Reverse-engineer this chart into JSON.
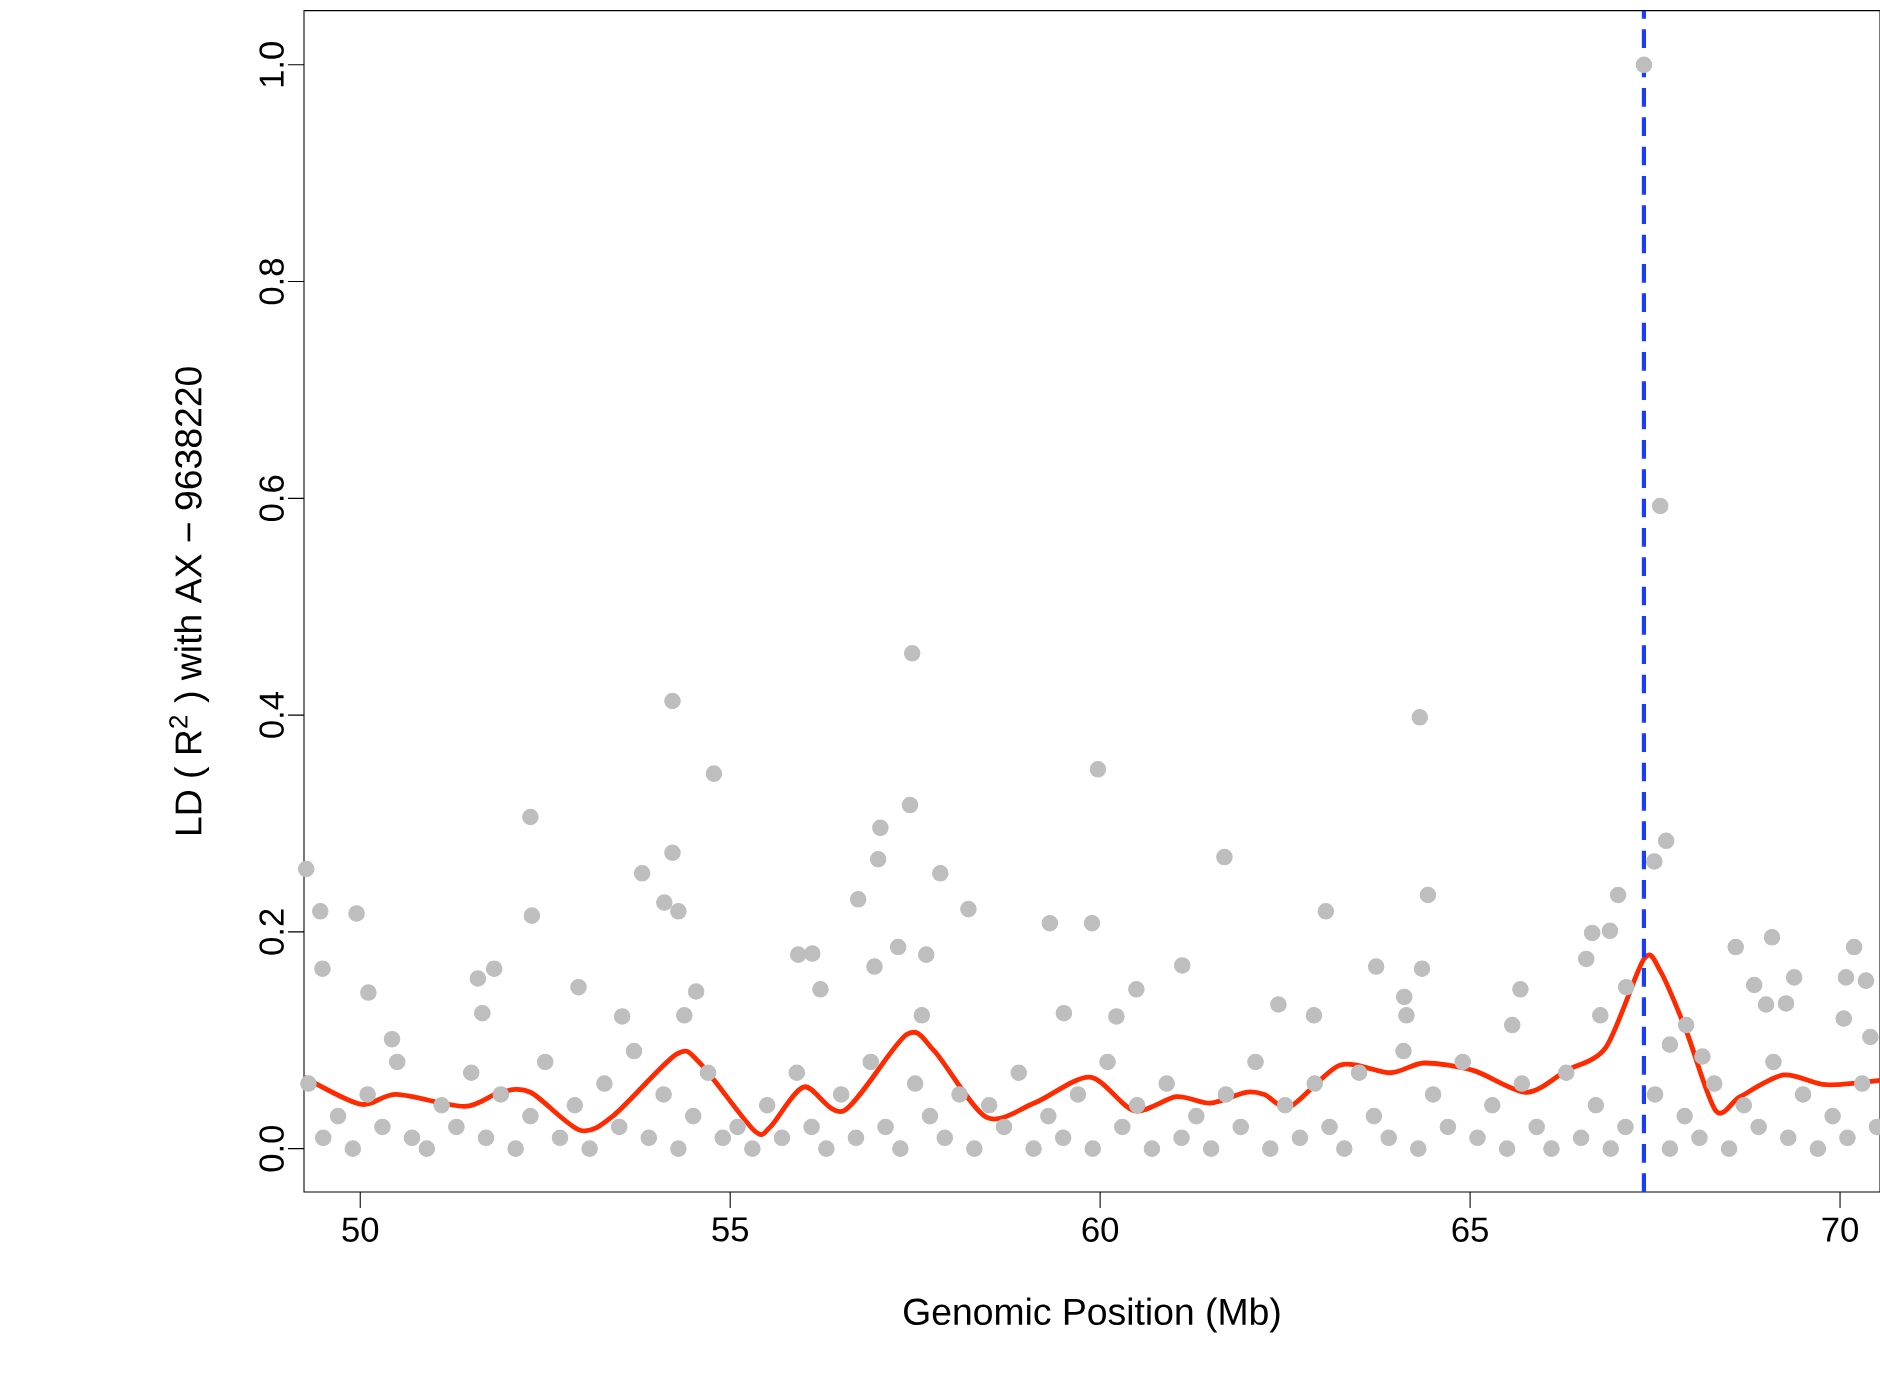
{
  "chart_data": {
    "type": "scatter",
    "xlabel": "Genomic Position (Mb)",
    "ylabel": "LD ( R$^{2}$ ) with AX − 9638220",
    "xlim": [
      49.24,
      70.54
    ],
    "ylim": [
      -0.04,
      1.05
    ],
    "xticks": [
      50,
      55,
      60,
      65,
      70
    ],
    "yticks": [
      {
        "value": 0,
        "label": "0.0"
      },
      0.2,
      0.4,
      0.6,
      0.8,
      {
        "value": 1,
        "label": "1.0"
      }
    ],
    "series": [
      {
        "color": "#bebebe",
        "marker": "circle",
        "x": [
          67.35,
          67.57,
          64.32,
          57.46,
          54.22,
          54.78,
          59.97,
          49.27,
          52.3,
          49.46,
          49.95,
          52.32,
          53.81,
          54.22,
          54.11,
          54.3,
          57.03,
          57.43,
          57.0,
          57.84,
          58.22,
          59.32,
          59.89,
          61.68,
          63.05,
          64.43,
          67.0,
          67.65,
          67.49,
          66.65,
          66.89,
          68.59,
          69.08,
          70.19,
          63.73,
          61.11,
          49.49,
          50.11,
          51.59,
          51.81,
          51.65,
          52.95,
          54.54,
          55.92,
          56.11,
          56.22,
          56.73,
          56.95,
          57.27,
          57.65,
          57.59,
          59.51,
          53.54,
          54.38,
          50.43,
          60.49,
          60.22,
          62.41,
          62.89,
          64.11,
          64.14,
          64.35,
          65.68,
          65.57,
          66.57,
          66.76,
          67.11,
          67.92,
          68.84,
          69.38,
          69.0,
          69.27,
          70.05,
          70.35,
          70.08,
          68.14,
          67.7,
          70.41,
          49.3,
          49.5,
          49.7,
          49.9,
          50.1,
          50.3,
          50.5,
          50.7,
          50.9,
          51.1,
          51.3,
          51.5,
          51.7,
          51.9,
          52.1,
          52.3,
          52.5,
          52.7,
          52.9,
          53.1,
          53.3,
          53.5,
          53.7,
          53.9,
          54.1,
          54.3,
          54.5,
          54.7,
          54.9,
          55.1,
          55.3,
          55.5,
          55.7,
          55.9,
          56.1,
          56.3,
          56.5,
          56.7,
          56.9,
          57.1,
          57.3,
          57.5,
          57.7,
          57.9,
          58.1,
          58.3,
          58.5,
          58.7,
          58.9,
          59.1,
          59.3,
          59.5,
          59.7,
          59.9,
          60.1,
          60.3,
          60.5,
          60.7,
          60.9,
          61.1,
          61.3,
          61.5,
          61.7,
          61.9,
          62.1,
          62.3,
          62.5,
          62.7,
          62.9,
          63.1,
          63.3,
          63.5,
          63.7,
          63.9,
          64.1,
          64.3,
          64.5,
          64.7,
          64.9,
          65.1,
          65.3,
          65.5,
          65.7,
          65.9,
          66.1,
          66.3,
          66.5,
          66.7,
          66.9,
          67.1,
          67.5,
          67.7,
          67.9,
          68.1,
          68.3,
          68.5,
          68.7,
          68.9,
          69.1,
          69.3,
          69.5,
          69.7,
          69.9,
          70.1,
          70.3,
          70.5
        ],
        "values": [
          1.0,
          0.593,
          0.398,
          0.457,
          0.413,
          0.346,
          0.35,
          0.258,
          0.306,
          0.219,
          0.217,
          0.215,
          0.254,
          0.273,
          0.227,
          0.219,
          0.296,
          0.317,
          0.267,
          0.254,
          0.221,
          0.208,
          0.208,
          0.269,
          0.219,
          0.234,
          0.234,
          0.284,
          0.265,
          0.199,
          0.201,
          0.186,
          0.195,
          0.186,
          0.168,
          0.169,
          0.166,
          0.144,
          0.157,
          0.166,
          0.125,
          0.149,
          0.145,
          0.179,
          0.18,
          0.147,
          0.23,
          0.168,
          0.186,
          0.179,
          0.123,
          0.125,
          0.122,
          0.123,
          0.101,
          0.147,
          0.122,
          0.133,
          0.123,
          0.14,
          0.123,
          0.166,
          0.147,
          0.114,
          0.175,
          0.123,
          0.149,
          0.114,
          0.151,
          0.158,
          0.133,
          0.134,
          0.12,
          0.155,
          0.158,
          0.085,
          0.096,
          0.103,
          0.06,
          0.01,
          0.03,
          0.0,
          0.05,
          0.02,
          0.08,
          0.01,
          0.0,
          0.04,
          0.02,
          0.07,
          0.01,
          0.05,
          0.0,
          0.03,
          0.08,
          0.01,
          0.04,
          0.0,
          0.06,
          0.02,
          0.09,
          0.01,
          0.05,
          0.0,
          0.03,
          0.07,
          0.01,
          0.02,
          0.0,
          0.04,
          0.01,
          0.07,
          0.02,
          0.0,
          0.05,
          0.01,
          0.08,
          0.02,
          0.0,
          0.06,
          0.03,
          0.01,
          0.05,
          0.0,
          0.04,
          0.02,
          0.07,
          0.0,
          0.03,
          0.01,
          0.05,
          0.0,
          0.08,
          0.02,
          0.04,
          0.0,
          0.06,
          0.01,
          0.03,
          0.0,
          0.05,
          0.02,
          0.08,
          0.0,
          0.04,
          0.01,
          0.06,
          0.02,
          0.0,
          0.07,
          0.03,
          0.01,
          0.09,
          0.0,
          0.05,
          0.02,
          0.08,
          0.01,
          0.04,
          0.0,
          0.06,
          0.02,
          0.0,
          0.07,
          0.01,
          0.04,
          0.0,
          0.02,
          0.05,
          0.0,
          0.03,
          0.01,
          0.06,
          0.0,
          0.04,
          0.02,
          0.08,
          0.01,
          0.05,
          0.0,
          0.03,
          0.01,
          0.06,
          0.02
        ]
      },
      {
        "type": "line",
        "color": "#ff2a00",
        "marker": "none",
        "line_style": "solid",
        "x": [
          49.24,
          50.0,
          50.49,
          51.41,
          51.89,
          52.3,
          52.97,
          53.43,
          54.27,
          54.59,
          55.32,
          55.54,
          56.0,
          56.54,
          57.38,
          57.76,
          58.46,
          59.11,
          59.86,
          60.46,
          61.03,
          61.49,
          61.97,
          62.22,
          62.57,
          63.24,
          63.92,
          64.38,
          65.05,
          65.76,
          66.3,
          66.84,
          67.35,
          67.57,
          67.92,
          68.32,
          68.65,
          69.24,
          69.81,
          70.54
        ],
        "values": [
          0.066,
          0.041,
          0.05,
          0.039,
          0.052,
          0.052,
          0.017,
          0.031,
          0.087,
          0.079,
          0.017,
          0.02,
          0.057,
          0.035,
          0.105,
          0.09,
          0.029,
          0.042,
          0.066,
          0.035,
          0.048,
          0.042,
          0.052,
          0.05,
          0.039,
          0.077,
          0.07,
          0.079,
          0.072,
          0.052,
          0.072,
          0.094,
          0.175,
          0.164,
          0.109,
          0.035,
          0.048,
          0.068,
          0.059,
          0.063
        ]
      }
    ],
    "ref_lines": [
      {
        "axis": "x",
        "value": 67.35,
        "color": "#1a3cff",
        "line_style": "dashed"
      }
    ]
  }
}
